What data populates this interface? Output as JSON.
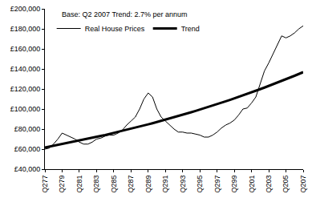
{
  "chart_data": {
    "type": "line",
    "title": "Base: Q2 2007 Trend: 2.7% per annum",
    "categories": [
      "Q277",
      null,
      null,
      null,
      "Q279",
      null,
      null,
      null,
      "Q281",
      null,
      null,
      null,
      "Q283",
      null,
      null,
      null,
      "Q285",
      null,
      null,
      null,
      "Q287",
      null,
      null,
      null,
      "Q289",
      null,
      null,
      null,
      "Q291",
      null,
      null,
      null,
      "Q293",
      null,
      null,
      null,
      "Q295",
      null,
      null,
      null,
      "Q297",
      null,
      null,
      null,
      "Q299",
      null,
      null,
      null,
      "Q201",
      null,
      null,
      null,
      "Q203",
      null,
      null,
      null,
      "Q205",
      null,
      null,
      null,
      "Q207"
    ],
    "series": [
      {
        "name": "Real House Prices",
        "color": "#000000",
        "line_style": "solid",
        "values": [
          60000,
          61000,
          65000,
          70000,
          76000,
          74000,
          72000,
          70000,
          67000,
          65000,
          65000,
          67000,
          70000,
          71000,
          73000,
          74000,
          74000,
          76000,
          79000,
          84000,
          88000,
          92000,
          100000,
          110000,
          116000,
          112000,
          100000,
          92000,
          88000,
          84000,
          80000,
          77000,
          77000,
          76000,
          76000,
          75000,
          74000,
          72000,
          72000,
          74000,
          77000,
          81000,
          84000,
          86000,
          89000,
          94000,
          100000,
          101000,
          106000,
          112000,
          125000,
          138000,
          146000,
          155000,
          165000,
          173000,
          171000,
          173000,
          176000,
          180000,
          183000
        ]
      },
      {
        "name": "Trend",
        "color": "#000000",
        "line_style": "solid",
        "values": [
          61500,
          62350,
          63200,
          64050,
          64900,
          65750,
          66600,
          67500,
          68400,
          69350,
          70300,
          71250,
          72200,
          73150,
          74100,
          75100,
          76100,
          77150,
          78200,
          79250,
          80300,
          81400,
          82500,
          83600,
          84700,
          85850,
          87000,
          88150,
          89300,
          90500,
          91700,
          92950,
          94200,
          95500,
          96800,
          98100,
          99400,
          100700,
          102000,
          103400,
          104800,
          106250,
          107700,
          109150,
          110600,
          112050,
          113500,
          115050,
          116600,
          118200,
          119800,
          121400,
          123000,
          124650,
          126300,
          128000,
          129700,
          131450,
          133200,
          135000,
          136800
        ]
      }
    ],
    "ylim": [
      40000,
      200000
    ],
    "yticks": [
      {
        "value": 40000,
        "label": "£40,000"
      },
      {
        "value": 60000,
        "label": "£60,000"
      },
      {
        "value": 80000,
        "label": "£80,000"
      },
      {
        "value": 100000,
        "label": "£100,000"
      },
      {
        "value": 120000,
        "label": "£120,000"
      },
      {
        "value": 140000,
        "label": "£140,000"
      },
      {
        "value": 160000,
        "label": "£160,000"
      },
      {
        "value": 180000,
        "label": "£180,000"
      },
      {
        "value": 200000,
        "label": "£200,000"
      }
    ],
    "grid": false,
    "legend": "upper left"
  }
}
